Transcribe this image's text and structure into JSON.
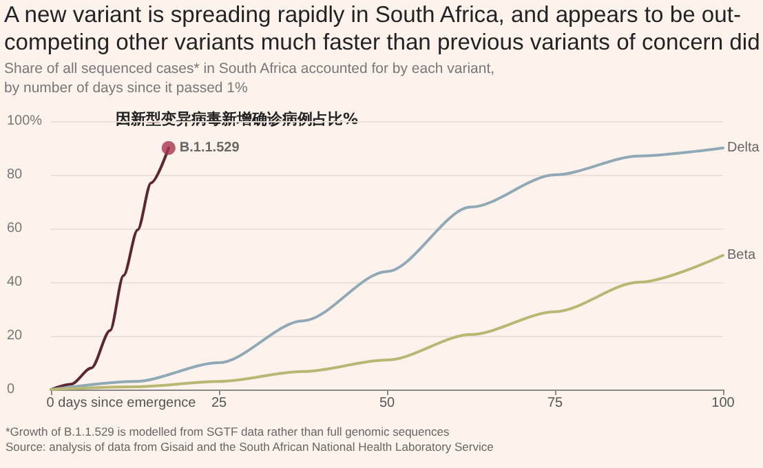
{
  "chart_data": {
    "type": "line",
    "title": "A new variant is spreading rapidly in South Africa, and appears to be out-competing other variants much faster than previous variants of concern did",
    "subtitle": "Share of all sequenced cases* in South Africa accounted for by each variant, by number of days since it passed 1%",
    "annotations": [
      "因新型变异病毒新增确诊病例占比%",
      "*Growth of B.1.1.529 is modelled from SGTF data rather than full genomic sequences",
      "Source: analysis of data from Gisaid and the South African National Health Laboratory Service"
    ],
    "xlim": [
      0,
      100
    ],
    "xticks": [
      {
        "value": 0,
        "label": "0 days since emergence"
      },
      25,
      50,
      75,
      100
    ],
    "ylim": [
      0,
      100
    ],
    "yticks": [
      0,
      20,
      40,
      60,
      80,
      {
        "value": 100,
        "label": "100%"
      }
    ],
    "grid": "y",
    "legend": false,
    "marker": "none",
    "line_style": "solid",
    "series": [
      {
        "name": "B.1.1.529",
        "color": "#5e2730",
        "x": [
          0,
          3,
          6,
          8.8,
          10.8,
          12.9,
          14.9,
          17.5
        ],
        "values": [
          0,
          2,
          8,
          22,
          42.5,
          59.5,
          77,
          90
        ]
      },
      {
        "type": "scatter",
        "color": "#a8344e",
        "marker": "circle",
        "x": [
          17.5
        ],
        "values": [
          90
        ]
      },
      {
        "name": "Delta",
        "color": "#8faab6",
        "x": [
          0,
          12.5,
          25,
          37.5,
          50,
          62.5,
          75,
          87.5,
          100
        ],
        "values": [
          0,
          3,
          10,
          25.6,
          44,
          68,
          80,
          87,
          90
        ]
      },
      {
        "name": "Beta",
        "color": "#b8b873",
        "x": [
          0,
          12.5,
          25,
          37.5,
          50,
          62.5,
          75,
          87.5,
          100
        ],
        "values": [
          0,
          1,
          3,
          6.7,
          11,
          20.5,
          29,
          40,
          50
        ]
      }
    ]
  }
}
